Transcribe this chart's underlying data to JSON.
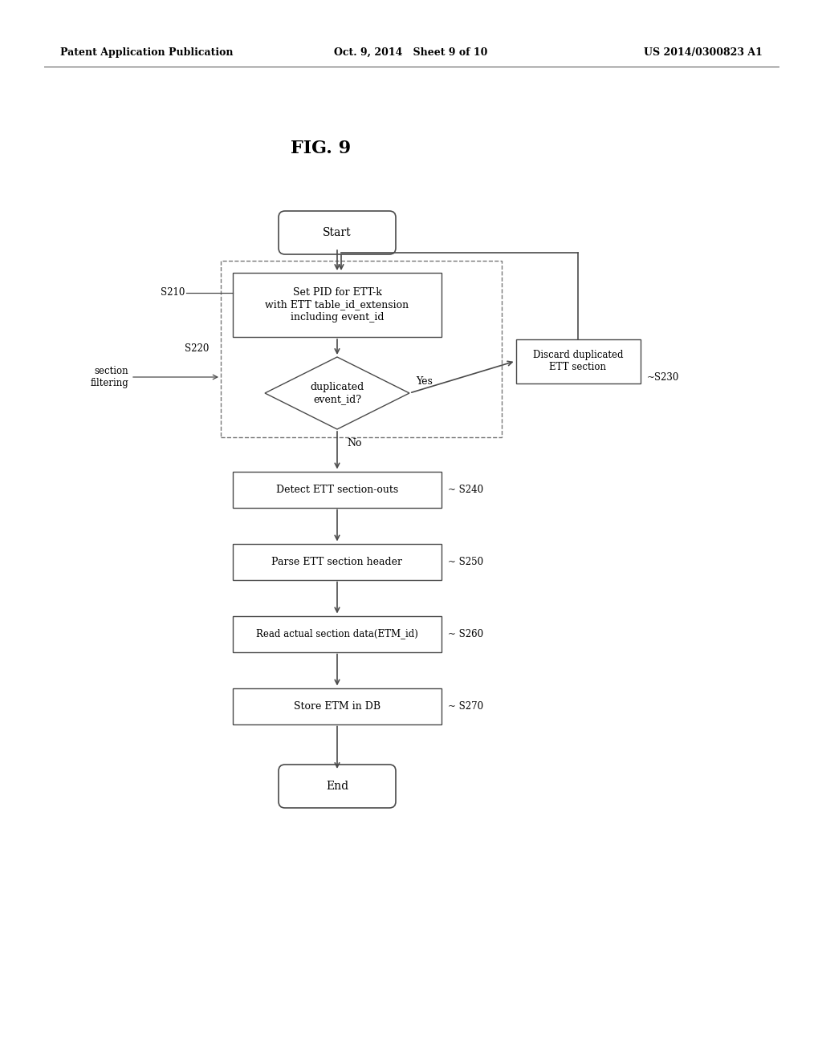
{
  "title": "FIG. 9",
  "header_left": "Patent Application Publication",
  "header_mid": "Oct. 9, 2014   Sheet 9 of 10",
  "header_right": "US 2014/0300823 A1",
  "bg_color": "#ffffff",
  "node_s210": "Set PID for ETT-k\nwith ETT table_id_extension\nincluding event_id",
  "node_s220": "duplicated\nevent_id?",
  "node_s230": "Discard duplicated\nETT section",
  "node_s240": "Detect ETT section-outs",
  "node_s250": "Parse ETT section header",
  "node_s260": "Read actual section data(ETM_id)",
  "node_s270": "Store ETM in DB",
  "label_yes": "Yes",
  "label_no": "No",
  "label_S210": "S210",
  "label_S220": "S220",
  "label_S230": "S230",
  "label_S240": "S240",
  "label_S250": "S250",
  "label_S260": "S260",
  "label_S270": "S270",
  "label_section_filtering": "section\nfiltering",
  "edge_color": "#4a4a4a",
  "font_size_header": 9,
  "font_size_title": 16,
  "font_size_node": 9,
  "font_size_label": 8.5
}
